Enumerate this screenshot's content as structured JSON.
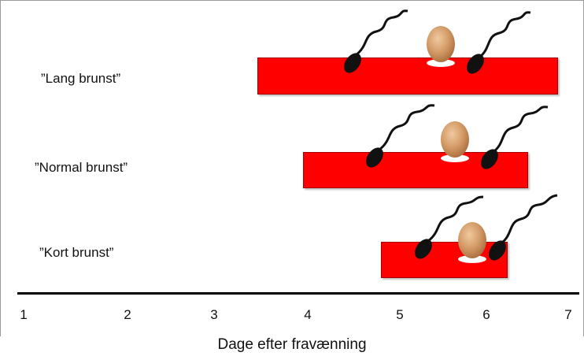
{
  "rows": [
    {
      "label": "”Lang brunst”"
    },
    {
      "label": "”Normal brunst”"
    },
    {
      "label": "”Kort brunst”"
    }
  ],
  "axis": {
    "ticks": [
      "1",
      "2",
      "3",
      "4",
      "5",
      "6",
      "7"
    ],
    "title": "Dage efter fravænning"
  },
  "colors": {
    "bar": "#ff0000",
    "egg": "#c98b5a",
    "sperm": "#111111"
  },
  "icons": [
    "egg-icon",
    "sperm-icon"
  ]
}
